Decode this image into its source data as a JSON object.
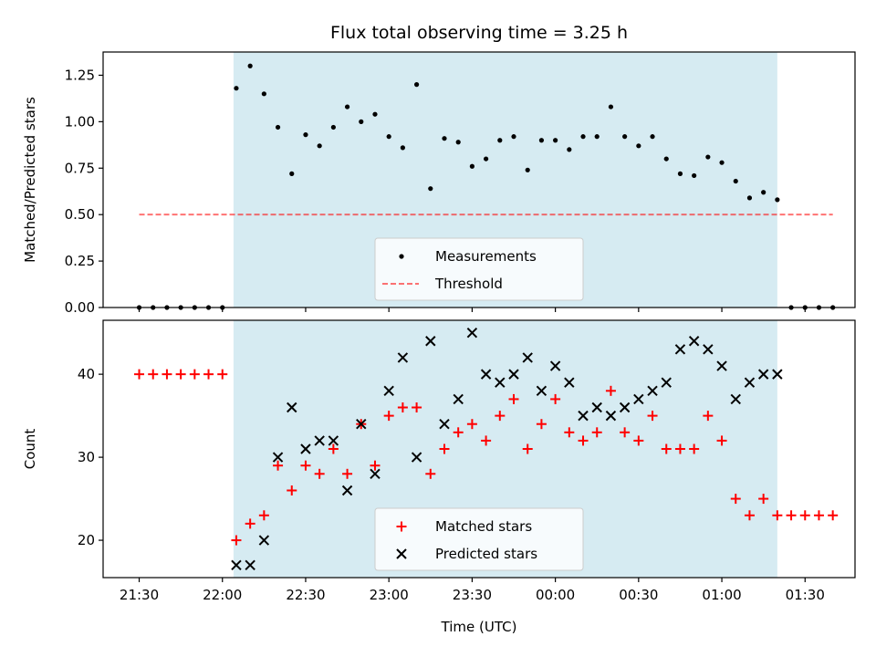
{
  "chart_data": {
    "title": "Flux total observing time = 3.25 h",
    "xlabel": "Time (UTC)",
    "x_unit": "UTC time",
    "shaded_interval": {
      "start": "22:04",
      "end": "01:20",
      "color": "#add8e6"
    },
    "x_ticks": [
      "21:30",
      "22:00",
      "22:30",
      "23:00",
      "23:30",
      "00:00",
      "00:30",
      "01:00",
      "01:30"
    ],
    "colors": {
      "measurements": "#000000",
      "threshold": "#ff0000",
      "matched": "#ff0000",
      "predicted": "#000000"
    },
    "panels": [
      {
        "type": "scatter",
        "ylabel": "Matched/Predicted stars",
        "ylim": [
          0,
          1.375
        ],
        "y_ticks": [
          "0.00",
          "0.25",
          "0.50",
          "0.75",
          "1.00",
          "1.25"
        ],
        "legend_position": "lower-center",
        "series": [
          {
            "name": "Measurements",
            "marker": "dot",
            "x": [
              "21:30",
              "21:35",
              "21:40",
              "21:45",
              "21:50",
              "21:55",
              "22:00",
              "22:05",
              "22:10",
              "22:15",
              "22:20",
              "22:25",
              "22:30",
              "22:35",
              "22:40",
              "22:45",
              "22:50",
              "22:55",
              "23:00",
              "23:05",
              "23:10",
              "23:15",
              "23:20",
              "23:25",
              "23:30",
              "23:35",
              "23:40",
              "23:45",
              "23:50",
              "23:55",
              "00:00",
              "00:05",
              "00:10",
              "00:15",
              "00:20",
              "00:25",
              "00:30",
              "00:35",
              "00:40",
              "00:45",
              "00:50",
              "00:55",
              "01:00",
              "01:05",
              "01:10",
              "01:15",
              "01:20",
              "01:25",
              "01:30",
              "01:35",
              "01:40"
            ],
            "y": [
              0,
              0,
              0,
              0,
              0,
              0,
              0,
              1.18,
              1.3,
              1.15,
              0.97,
              0.72,
              0.93,
              0.87,
              0.97,
              1.08,
              1.0,
              1.04,
              0.92,
              0.86,
              1.2,
              0.64,
              0.91,
              0.89,
              0.76,
              0.8,
              0.9,
              0.92,
              0.74,
              0.9,
              0.9,
              0.85,
              0.92,
              0.92,
              1.08,
              0.92,
              0.87,
              0.92,
              0.8,
              0.72,
              0.71,
              0.81,
              0.78,
              0.68,
              0.59,
              0.62,
              0.58,
              0,
              0,
              0,
              0
            ]
          },
          {
            "name": "Threshold",
            "marker": "dashed-line",
            "x": [
              "21:30",
              "01:40"
            ],
            "y": [
              0.5,
              0.5
            ]
          }
        ]
      },
      {
        "type": "scatter",
        "ylabel": "Count",
        "ylim": [
          15.5,
          46.5
        ],
        "y_ticks": [
          "20",
          "30",
          "40"
        ],
        "legend_position": "lower-center",
        "series": [
          {
            "name": "Matched stars",
            "marker": "plus",
            "x": [
              "21:30",
              "21:35",
              "21:40",
              "21:45",
              "21:50",
              "21:55",
              "22:00",
              "22:05",
              "22:10",
              "22:15",
              "22:20",
              "22:25",
              "22:30",
              "22:35",
              "22:40",
              "22:45",
              "22:50",
              "22:55",
              "23:00",
              "23:05",
              "23:10",
              "23:15",
              "23:20",
              "23:25",
              "23:30",
              "23:35",
              "23:40",
              "23:45",
              "23:50",
              "23:55",
              "00:00",
              "00:05",
              "00:10",
              "00:15",
              "00:20",
              "00:25",
              "00:30",
              "00:35",
              "00:40",
              "00:45",
              "00:50",
              "00:55",
              "01:00",
              "01:05",
              "01:10",
              "01:15",
              "01:20",
              "01:25",
              "01:30",
              "01:35",
              "01:40"
            ],
            "y": [
              40,
              40,
              40,
              40,
              40,
              40,
              40,
              20,
              22,
              23,
              29,
              26,
              29,
              28,
              31,
              28,
              34,
              29,
              35,
              36,
              36,
              28,
              31,
              33,
              34,
              32,
              35,
              37,
              31,
              34,
              37,
              33,
              32,
              33,
              38,
              33,
              32,
              35,
              31,
              31,
              31,
              35,
              32,
              25,
              23,
              25,
              23,
              23,
              23,
              23,
              23
            ]
          },
          {
            "name": "Predicted stars",
            "marker": "x",
            "x": [
              "22:05",
              "22:10",
              "22:15",
              "22:20",
              "22:25",
              "22:30",
              "22:35",
              "22:40",
              "22:45",
              "22:50",
              "22:55",
              "23:00",
              "23:05",
              "23:10",
              "23:15",
              "23:20",
              "23:25",
              "23:30",
              "23:35",
              "23:40",
              "23:45",
              "23:50",
              "23:55",
              "00:00",
              "00:05",
              "00:10",
              "00:15",
              "00:20",
              "00:25",
              "00:30",
              "00:35",
              "00:40",
              "00:45",
              "00:50",
              "00:55",
              "01:00",
              "01:05",
              "01:10",
              "01:15",
              "01:20"
            ],
            "y": [
              17,
              17,
              20,
              30,
              36,
              31,
              32,
              32,
              26,
              34,
              28,
              38,
              42,
              30,
              44,
              34,
              37,
              45,
              40,
              39,
              40,
              42,
              38,
              41,
              39,
              35,
              36,
              35,
              36,
              37,
              38,
              39,
              43,
              44,
              43,
              41,
              37,
              39,
              40,
              40
            ]
          }
        ]
      }
    ]
  }
}
